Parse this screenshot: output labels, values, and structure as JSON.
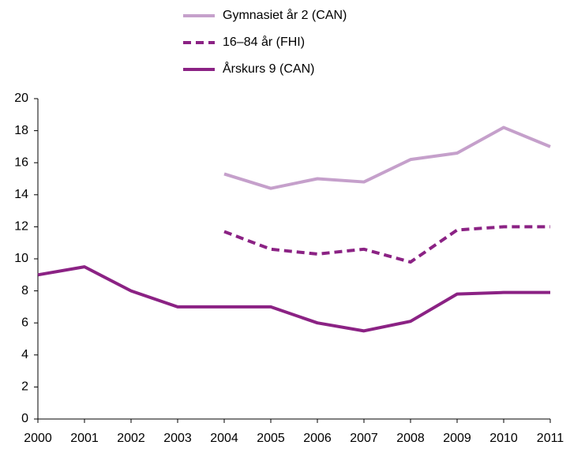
{
  "chart_data": {
    "type": "line",
    "categories": [
      "2000",
      "2001",
      "2002",
      "2003",
      "2004",
      "2005",
      "2006",
      "2007",
      "2008",
      "2009",
      "2010",
      "2011"
    ],
    "series": [
      {
        "name": "Gymnasiet år 2 (CAN)",
        "color": "#c5a0cb",
        "dash": false,
        "values": [
          null,
          null,
          null,
          null,
          15.3,
          14.4,
          15.0,
          14.8,
          16.2,
          16.6,
          18.2,
          17.0
        ]
      },
      {
        "name": "16–84 år (FHI)",
        "color": "#8b2284",
        "dash": true,
        "values": [
          null,
          null,
          null,
          null,
          11.7,
          10.6,
          10.3,
          10.6,
          9.8,
          11.8,
          12.0,
          12.0
        ]
      },
      {
        "name": "Årskurs 9 (CAN)",
        "color": "#8b2284",
        "dash": false,
        "values": [
          9.0,
          9.5,
          8.0,
          7.0,
          7.0,
          7.0,
          6.0,
          5.5,
          6.1,
          7.8,
          7.9,
          7.9
        ]
      }
    ],
    "ylim": [
      0,
      20
    ],
    "yticks": [
      0,
      2,
      4,
      6,
      8,
      10,
      12,
      14,
      16,
      18,
      20
    ],
    "grid": false
  }
}
